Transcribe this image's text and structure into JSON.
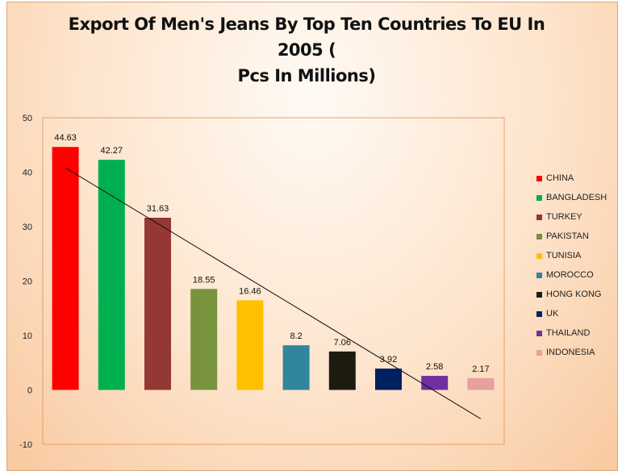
{
  "chart_data": {
    "type": "bar",
    "title": "Export Of Men's Jeans By Top Ten Countries To EU In 2005 ( Pcs In Millions)",
    "title_lines": [
      "Export Of Men's Jeans By Top Ten Countries To EU In 2005 (",
      "Pcs In Millions)"
    ],
    "xlabel": "",
    "ylabel": "",
    "categories": [
      "CHINA",
      "BANGLADESH",
      "TURKEY",
      "PAKISTAN",
      "TUNISIA",
      "MOROCCO",
      "HONG KONG",
      "UK",
      "THAILAND",
      "INDONESIA"
    ],
    "values": [
      44.63,
      42.27,
      31.63,
      18.55,
      16.46,
      8.2,
      7.06,
      3.92,
      2.58,
      2.17
    ],
    "value_labels": [
      "44.63",
      "42.27",
      "31.63",
      "18.55",
      "16.46",
      "8.2",
      "7.06",
      "3.92",
      "2.58",
      "2.17"
    ],
    "colors": [
      "#ff0000",
      "#00b050",
      "#953735",
      "#77933c",
      "#ffc000",
      "#31859c",
      "#1d1b10",
      "#002060",
      "#7030a0",
      "#e6a0a0"
    ],
    "ylim": [
      -10,
      50
    ],
    "yticks": [
      -10,
      0,
      10,
      20,
      30,
      40,
      50
    ],
    "trendline": {
      "type": "linear",
      "start": 40.8,
      "end": -5.3
    },
    "legend_position": "right",
    "grid": false
  }
}
